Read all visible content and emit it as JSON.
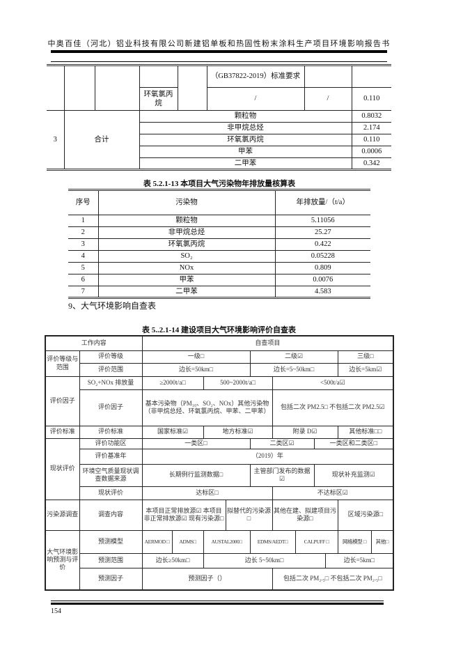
{
  "header": {
    "title": "中奥百佳（河北）铝业科技有限公司新建铝单板和热固性粉末涂料生产项目环境影响报告书"
  },
  "top_table": {
    "standard_text": "（GB37822-2019）标准要求",
    "epichlorohydrin_label": "环氧氯丙烷",
    "slash1": "/",
    "slash2": "/",
    "epichlorohydrin_value": "0.110",
    "total_index": "3",
    "total_label": "合计",
    "totals": [
      {
        "name": "颗粒物",
        "value": "0.8032"
      },
      {
        "name": "非甲烷总烃",
        "value": "2.174"
      },
      {
        "name": "环氧氯丙烷",
        "value": "0.110"
      },
      {
        "name": "甲苯",
        "value": "0.0006"
      },
      {
        "name": "二甲苯",
        "value": "0.342"
      }
    ]
  },
  "table13": {
    "title": "表 5.2.1-13    本项目大气污染物年排放量核算表",
    "headers": [
      "序号",
      "污染物",
      "年排放量/（t/a）"
    ],
    "rows": [
      [
        "1",
        "颗粒物",
        "5.11056"
      ],
      [
        "2",
        "非甲烷总烃",
        "25.27"
      ],
      [
        "3",
        "环氧氯丙烷",
        "0.422"
      ],
      [
        "4",
        "SO₂",
        "0.05228"
      ],
      [
        "5",
        "NOx",
        "0.809"
      ],
      [
        "6",
        "甲苯",
        "0.0076"
      ],
      [
        "7",
        "二甲苯",
        "4.583"
      ]
    ]
  },
  "section9": "9、大气环境影响自查表",
  "table14": {
    "title": "表 5..2.1-14  建设项目大气环境影响评价自查表",
    "h_work": "工作内容",
    "h_check": "自查项目",
    "g1": "评价等级与范围",
    "g1_r1": [
      "评价等级",
      "一级□",
      "二级☑",
      "三级□"
    ],
    "g1_r2": [
      "评价范围",
      "边长=50km□",
      "边长=5~50km□",
      "边长=5km☑"
    ],
    "g2": "评价因子",
    "g2_r1": [
      "SO₂+NOx 排放量",
      "≥2000t/a□",
      "500~2000t/a□",
      "<500t/a☑"
    ],
    "g2_r2": [
      "评价因子",
      "基本污染物（PM₁₀、SO₂、NOx）其他污染物（非甲烷总烃、环氧氯丙烷、甲苯、二甲苯）",
      "包括二次 PM2.5□ 不包括二次 PM2.5☑"
    ],
    "g3": "评价标准",
    "g3_r1": [
      "评价标准",
      "国家标准☑",
      "地方标准☑",
      "附录 D☑",
      "其他标准□□"
    ],
    "g4": "现状评价",
    "g4_r1": [
      "评价功能区",
      "一类区□",
      "二类区☑",
      "一类区和二类区□"
    ],
    "g4_r2": [
      "评价基准年",
      "（2019）年"
    ],
    "g4_r3": [
      "环境空气质量现状调查数据来源",
      "长期例行监测数据□",
      "主管部门发布的数据☑",
      "现状补充监测☑"
    ],
    "g4_r4": [
      "现状评价",
      "达标区□",
      "不达标区☑"
    ],
    "g5": "污染源调查",
    "g5_r1": [
      "调查内容",
      "本项目正常排放源☑ 本项目非正常排放源☑ 现有污染源□",
      "拟替代的污染源□",
      "其他在建、拟建项目污染源□",
      "区域污染源□"
    ],
    "g6": "大气环境影响预测与评价",
    "g6_r1": [
      "预测模型",
      "AERMOD □",
      "ADMS□",
      "AUSTAL2000□",
      "EDMS/AEDT□",
      "CALPUFF □",
      "网格模型 □",
      "其他□"
    ],
    "g6_r2": [
      "预测范围",
      "边长≥50km□",
      "边长 5~50km□",
      "边长=5km□"
    ],
    "g6_r3": [
      "预测因子",
      "预测因子（）",
      "包括二次 PM₂.₅□ 不包括二次 PM₂.₅□"
    ]
  },
  "footer": {
    "page_number": "154"
  }
}
